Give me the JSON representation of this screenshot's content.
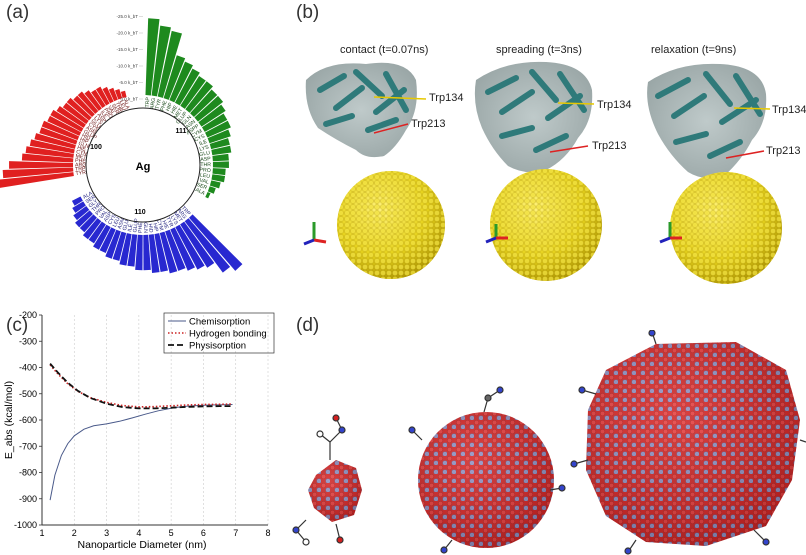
{
  "panels": {
    "a": "(a)",
    "b": "(b)",
    "c": "(c)",
    "d": "(d)"
  },
  "panel_a": {
    "center_label": "Ag",
    "facet_labels": [
      "111",
      "100",
      "110"
    ],
    "scale_ticks": [
      "-25.0 k_bT",
      "-20.0 k_bT",
      "-15.0 k_bT",
      "-10.0 k_bT",
      "-5.0 k_bT",
      "0.0 k_bT"
    ],
    "colors": {
      "facet111": "#1e8a1e",
      "facet100": "#e02020",
      "facet110": "#2828d0"
    },
    "groups": [
      {
        "name": "111",
        "residues": [
          "TRP",
          "ARG",
          "TYR",
          "PHE",
          "HIP",
          "HIE",
          "MET",
          "GLUP",
          "GLN",
          "ASN",
          "ASPP",
          "CYM",
          "CYS",
          "ILE",
          "LYS",
          "GLU",
          "ASP",
          "THR",
          "PRO",
          "LEU",
          "VAL",
          "SER",
          "ALA"
        ],
        "values": [
          24,
          22,
          21,
          14,
          13,
          12,
          11,
          11,
          10,
          10,
          9,
          8,
          8,
          7,
          6,
          6,
          5,
          5,
          4,
          4,
          3,
          2,
          1
        ]
      },
      {
        "name": "110",
        "residues": [
          "TRP",
          "ARG",
          "MET",
          "LYS",
          "TYR",
          "HIE",
          "CYM",
          "HIP",
          "HID",
          "GLN",
          "PHE",
          "GLUP",
          "ILE",
          "GLU",
          "ASN",
          "LEU",
          "CYS",
          "ASP",
          "VAL",
          "PRO",
          "THR",
          "GLY",
          "SER",
          "ALA"
        ],
        "values": [
          22,
          20,
          16,
          15,
          14,
          13,
          13,
          12,
          12,
          11,
          11,
          10,
          10,
          9,
          9,
          8,
          8,
          7,
          7,
          6,
          6,
          5,
          4,
          3
        ]
      },
      {
        "name": "100",
        "residues": [
          "TYR",
          "TRP",
          "ARG",
          "PHE",
          "MET",
          "CYM",
          "HIE",
          "GLN",
          "HIP",
          "HID",
          "GLUP",
          "ASN",
          "CYS",
          "GLU",
          "LYS",
          "ASP",
          "ILE",
          "PRO",
          "VAL",
          "SER",
          "THR",
          "LEU",
          "ALA"
        ],
        "values": [
          24,
          22,
          20,
          16,
          15,
          14,
          13,
          12,
          12,
          11,
          11,
          10,
          9,
          9,
          8,
          8,
          7,
          6,
          6,
          5,
          4,
          3,
          2
        ]
      }
    ]
  },
  "panel_b": {
    "snapshots": [
      {
        "title": "contact (t=0.07ns)",
        "trp1": "Trp134",
        "trp2": "Trp213"
      },
      {
        "title": "spreading (t=3ns)",
        "trp1": "Trp134",
        "trp2": "Trp213"
      },
      {
        "title": "relaxation (t=9ns)",
        "trp1": "Trp134",
        "trp2": "Trp213"
      }
    ]
  },
  "chart_data": {
    "type": "line",
    "xlabel": "Nanoparticle Diameter (nm)",
    "ylabel": "E_abs (kcal/mol)",
    "xlim": [
      1,
      8
    ],
    "ylim": [
      -1000,
      -200
    ],
    "xticks": [
      1,
      2,
      3,
      4,
      5,
      6,
      7,
      8
    ],
    "yticks": [
      -1000,
      -900,
      -800,
      -700,
      -600,
      -500,
      -400,
      -300,
      -200
    ],
    "series": [
      {
        "name": "Chemisorption",
        "color": "#4a5a8a",
        "style": "solid",
        "x": [
          1.25,
          1.4,
          1.6,
          1.8,
          2.0,
          2.3,
          2.6,
          3.0,
          3.4,
          3.8,
          4.2,
          4.6,
          5.0,
          5.4,
          5.8,
          6.2,
          6.6,
          6.9
        ],
        "y": [
          -905,
          -810,
          -735,
          -690,
          -660,
          -635,
          -622,
          -615,
          -605,
          -592,
          -578,
          -565,
          -555,
          -548,
          -545,
          -543,
          -542,
          -541
        ]
      },
      {
        "name": "Hydrogen bonding",
        "color": "#cc2222",
        "style": "dotted",
        "x": [
          1.25,
          1.5,
          1.8,
          2.1,
          2.5,
          3.0,
          3.5,
          4.0,
          4.5,
          5.0,
          5.5,
          6.0,
          6.5,
          6.9
        ],
        "y": [
          -390,
          -425,
          -462,
          -490,
          -515,
          -533,
          -545,
          -550,
          -549,
          -546,
          -543,
          -541,
          -540,
          -539
        ]
      },
      {
        "name": "Physisorption",
        "color": "#111111",
        "style": "dashed",
        "x": [
          1.25,
          1.5,
          1.8,
          2.1,
          2.5,
          3.0,
          3.5,
          4.0,
          4.5,
          5.0,
          5.5,
          6.0,
          6.5,
          6.9
        ],
        "y": [
          -385,
          -420,
          -458,
          -488,
          -516,
          -538,
          -551,
          -556,
          -556,
          -553,
          -550,
          -548,
          -547,
          -547
        ]
      }
    ]
  },
  "colors": {
    "gold_particle": "#e6d21e",
    "protein": "#3c8c8c",
    "red_atom": "#d42020",
    "grey_atom": "#8e8ec0"
  }
}
